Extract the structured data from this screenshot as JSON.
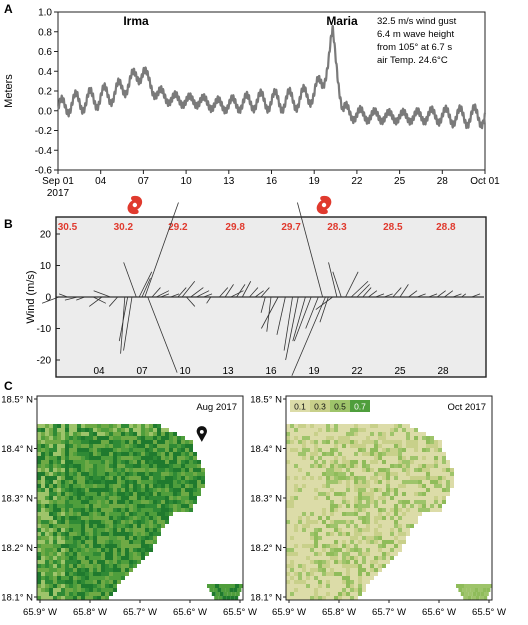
{
  "colors": {
    "series": "#7a7a7a",
    "axis": "#222222",
    "temp": "#e03a2e",
    "panel_bg": "#ececec",
    "veg_dark": "#1f7a2e",
    "veg_mid": "#4f9e3c",
    "veg_light": "#9ec46a",
    "veg_pale": "#dcdca8",
    "water": "#ffffff"
  },
  "chart_data": [
    {
      "panel": "A",
      "type": "line",
      "ylabel": "Meters",
      "ylim": [
        -0.6,
        1.0
      ],
      "yticks": [
        "1.0",
        "0.8",
        "0.6",
        "0.4",
        "0.2",
        "0.0",
        "-0.2",
        "-0.4",
        "-0.6"
      ],
      "ytick_values": [
        1.0,
        0.8,
        0.6,
        0.4,
        0.2,
        0.0,
        -0.2,
        -0.4,
        -0.6
      ],
      "xlim": [
        1,
        31
      ],
      "xticks": [
        "Sep 01",
        "04",
        "07",
        "10",
        "13",
        "16",
        "19",
        "22",
        "25",
        "28",
        "Oct 01"
      ],
      "xtick_values": [
        1,
        4,
        7,
        10,
        13,
        16,
        19,
        22,
        25,
        28,
        31
      ],
      "xsublabel": "2017",
      "series": [
        {
          "values": [
            [
              1,
              0.02
            ],
            [
              2,
              0.08
            ],
            [
              3,
              0.1
            ],
            [
              4,
              0.14
            ],
            [
              5,
              0.18
            ],
            [
              6,
              0.28
            ],
            [
              6.5,
              0.35
            ],
            [
              7,
              0.4
            ],
            [
              7.3,
              0.3
            ],
            [
              8,
              0.17
            ],
            [
              9,
              0.12
            ],
            [
              10,
              0.1
            ],
            [
              11,
              0.1
            ],
            [
              12,
              0.06
            ],
            [
              13,
              0.06
            ],
            [
              14,
              0.08
            ],
            [
              15,
              0.1
            ],
            [
              16,
              0.1
            ],
            [
              17,
              0.1
            ],
            [
              18,
              0.12
            ],
            [
              19,
              0.18
            ],
            [
              19.6,
              0.3
            ],
            [
              20,
              0.5
            ],
            [
              20.3,
              0.76
            ],
            [
              20.6,
              0.45
            ],
            [
              21,
              0.0
            ],
            [
              22,
              -0.04
            ],
            [
              23,
              -0.05
            ],
            [
              24,
              -0.06
            ],
            [
              25,
              -0.06
            ],
            [
              26,
              -0.06
            ],
            [
              27,
              -0.05
            ],
            [
              28,
              -0.05
            ],
            [
              29,
              -0.06
            ],
            [
              30,
              -0.06
            ],
            [
              31,
              -0.05
            ]
          ],
          "tidal_amplitude": 0.1,
          "tidal_period_days": 1.0
        }
      ],
      "annotations": {
        "irma": "Irma",
        "maria": "Maria",
        "note_lines": [
          "32.5 m/s wind gust",
          "6.4 m wave height",
          "from 105° at 6.7 s",
          "air Temp. 24.6°C"
        ]
      }
    },
    {
      "panel": "B",
      "type": "scatter",
      "ylabel": "Wind (m/s)",
      "ylim": [
        -25,
        25
      ],
      "yticks": [
        "20",
        "10",
        "0",
        "-10",
        "-20"
      ],
      "ytick_values": [
        20,
        10,
        0,
        -10,
        -20
      ],
      "xlim": [
        1,
        31
      ],
      "xticks": [
        "04",
        "07",
        "10",
        "13",
        "16",
        "19",
        "22",
        "25",
        "28"
      ],
      "xtick_values": [
        4,
        7,
        10,
        13,
        16,
        19,
        22,
        25,
        28
      ],
      "temperatures": [
        "30.5",
        "30.2",
        "29.2",
        "29.8",
        "29.7",
        "28.3",
        "28.5",
        "28.8"
      ],
      "temperature_days": [
        1.8,
        5.7,
        9.5,
        13.5,
        17.4,
        20.6,
        24.5,
        28.2
      ],
      "hurricane_days": [
        6.5,
        19.7
      ],
      "wind_vectors": [
        [
          1.2,
          -4,
          -2
        ],
        [
          1.8,
          -2,
          1
        ],
        [
          2.5,
          -3,
          -1
        ],
        [
          3.0,
          -2,
          -1
        ],
        [
          3.6,
          3,
          -2
        ],
        [
          4.2,
          -3,
          -3
        ],
        [
          4.8,
          -4,
          2
        ],
        [
          5.3,
          -2,
          -3
        ],
        [
          5.8,
          -1,
          -18
        ],
        [
          6.0,
          -2,
          -14
        ],
        [
          6.3,
          -2,
          -17
        ],
        [
          6.6,
          -3,
          11
        ],
        [
          6.8,
          3,
          8
        ],
        [
          7.0,
          2,
          6
        ],
        [
          7.2,
          8,
          30
        ],
        [
          7.4,
          7,
          -24
        ],
        [
          7.7,
          2,
          3
        ],
        [
          8.0,
          3,
          2
        ],
        [
          8.3,
          2,
          1
        ],
        [
          9.0,
          2,
          1
        ],
        [
          9.5,
          2,
          3
        ],
        [
          9.8,
          3,
          5
        ],
        [
          10.1,
          2,
          -3
        ],
        [
          10.4,
          3,
          3
        ],
        [
          10.8,
          3,
          2
        ],
        [
          11.3,
          2,
          1
        ],
        [
          11.8,
          -1,
          -2
        ],
        [
          12.4,
          2,
          3
        ],
        [
          12.8,
          2,
          4
        ],
        [
          13.2,
          3,
          2
        ],
        [
          13.6,
          2,
          4
        ],
        [
          14.0,
          2,
          5
        ],
        [
          14.5,
          2,
          3
        ],
        [
          14.9,
          2,
          2
        ],
        [
          15.3,
          2,
          3
        ],
        [
          15.6,
          -1,
          -5
        ],
        [
          16.0,
          -1,
          -11
        ],
        [
          16.5,
          -4,
          -10
        ],
        [
          17.0,
          -2,
          -12
        ],
        [
          17.5,
          -2,
          -17
        ],
        [
          17.9,
          -3,
          -20
        ],
        [
          18.4,
          -3,
          -14
        ],
        [
          18.8,
          -4,
          -14
        ],
        [
          19.3,
          -3,
          -10
        ],
        [
          19.6,
          -6,
          30
        ],
        [
          19.8,
          -8,
          -25
        ],
        [
          20.0,
          -2,
          -8
        ],
        [
          20.3,
          -4,
          -4
        ],
        [
          20.6,
          -2,
          11
        ],
        [
          20.9,
          -2,
          8
        ],
        [
          21.2,
          3,
          8
        ],
        [
          21.6,
          4,
          5
        ],
        [
          22.0,
          3,
          4
        ],
        [
          22.4,
          2,
          3
        ],
        [
          22.8,
          2,
          2
        ],
        [
          23.3,
          2,
          1
        ],
        [
          23.9,
          2,
          1
        ],
        [
          24.5,
          2,
          3
        ],
        [
          25.0,
          2,
          4
        ],
        [
          25.6,
          2,
          2
        ],
        [
          26.2,
          2,
          1
        ],
        [
          27.0,
          2,
          1
        ],
        [
          27.6,
          2,
          2
        ],
        [
          28.1,
          2,
          2
        ],
        [
          28.7,
          2,
          1
        ],
        [
          29.3,
          1,
          1
        ],
        [
          30.0,
          2,
          1
        ]
      ]
    },
    {
      "panel": "C",
      "type": "heatmap",
      "maps": [
        {
          "title": "Aug 2017",
          "xticks": [
            "65.9° W",
            "65.8° W",
            "65.7° W",
            "65.6° W",
            "65.5° W"
          ],
          "yticks": [
            "18.5° N",
            "18.4° N",
            "18.3° N",
            "18.2° N",
            "18.1° N"
          ],
          "xlim": [
            -65.9,
            -65.5
          ],
          "ylim": [
            18.1,
            18.5
          ],
          "marker": [
            -65.58,
            18.41
          ]
        },
        {
          "title": "Oct 2017",
          "xticks": [
            "65.9° W",
            "65.8° W",
            "65.7° W",
            "65.6° W",
            "65.5° W"
          ],
          "yticks": [
            "18.5° N",
            "18.4° N",
            "18.3° N",
            "18.2° N",
            "18.1° N"
          ],
          "xlim": [
            -65.9,
            -65.5
          ],
          "ylim": [
            18.1,
            18.5
          ]
        }
      ],
      "legend": [
        "0.1",
        "0.3",
        "0.5",
        "0.7"
      ]
    }
  ],
  "labels": {
    "a": "A",
    "b": "B",
    "c": "C"
  }
}
